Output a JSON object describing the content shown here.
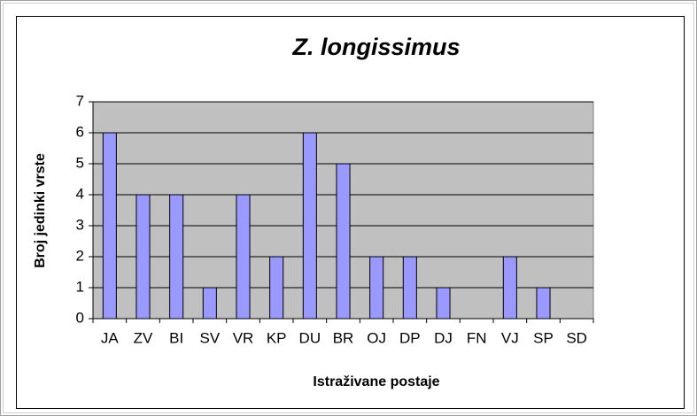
{
  "chart_data": {
    "type": "bar",
    "title": "Z. longissimus",
    "x_label": "Istraživane postaje",
    "y_label": "Broj jedinki vrste",
    "categories": [
      "JA",
      "ZV",
      "BI",
      "SV",
      "VR",
      "KP",
      "DU",
      "BR",
      "OJ",
      "DP",
      "DJ",
      "FN",
      "VJ",
      "SP",
      "SD"
    ],
    "values": [
      6,
      4,
      4,
      1,
      4,
      2,
      6,
      5,
      2,
      2,
      1,
      0,
      2,
      1,
      0
    ],
    "color": "#9999ff",
    "plot_background": "#c0c0c0",
    "ylim": [
      0,
      7
    ],
    "yticks": [
      0,
      1,
      2,
      3,
      4,
      5,
      6,
      7
    ],
    "grid": true
  }
}
